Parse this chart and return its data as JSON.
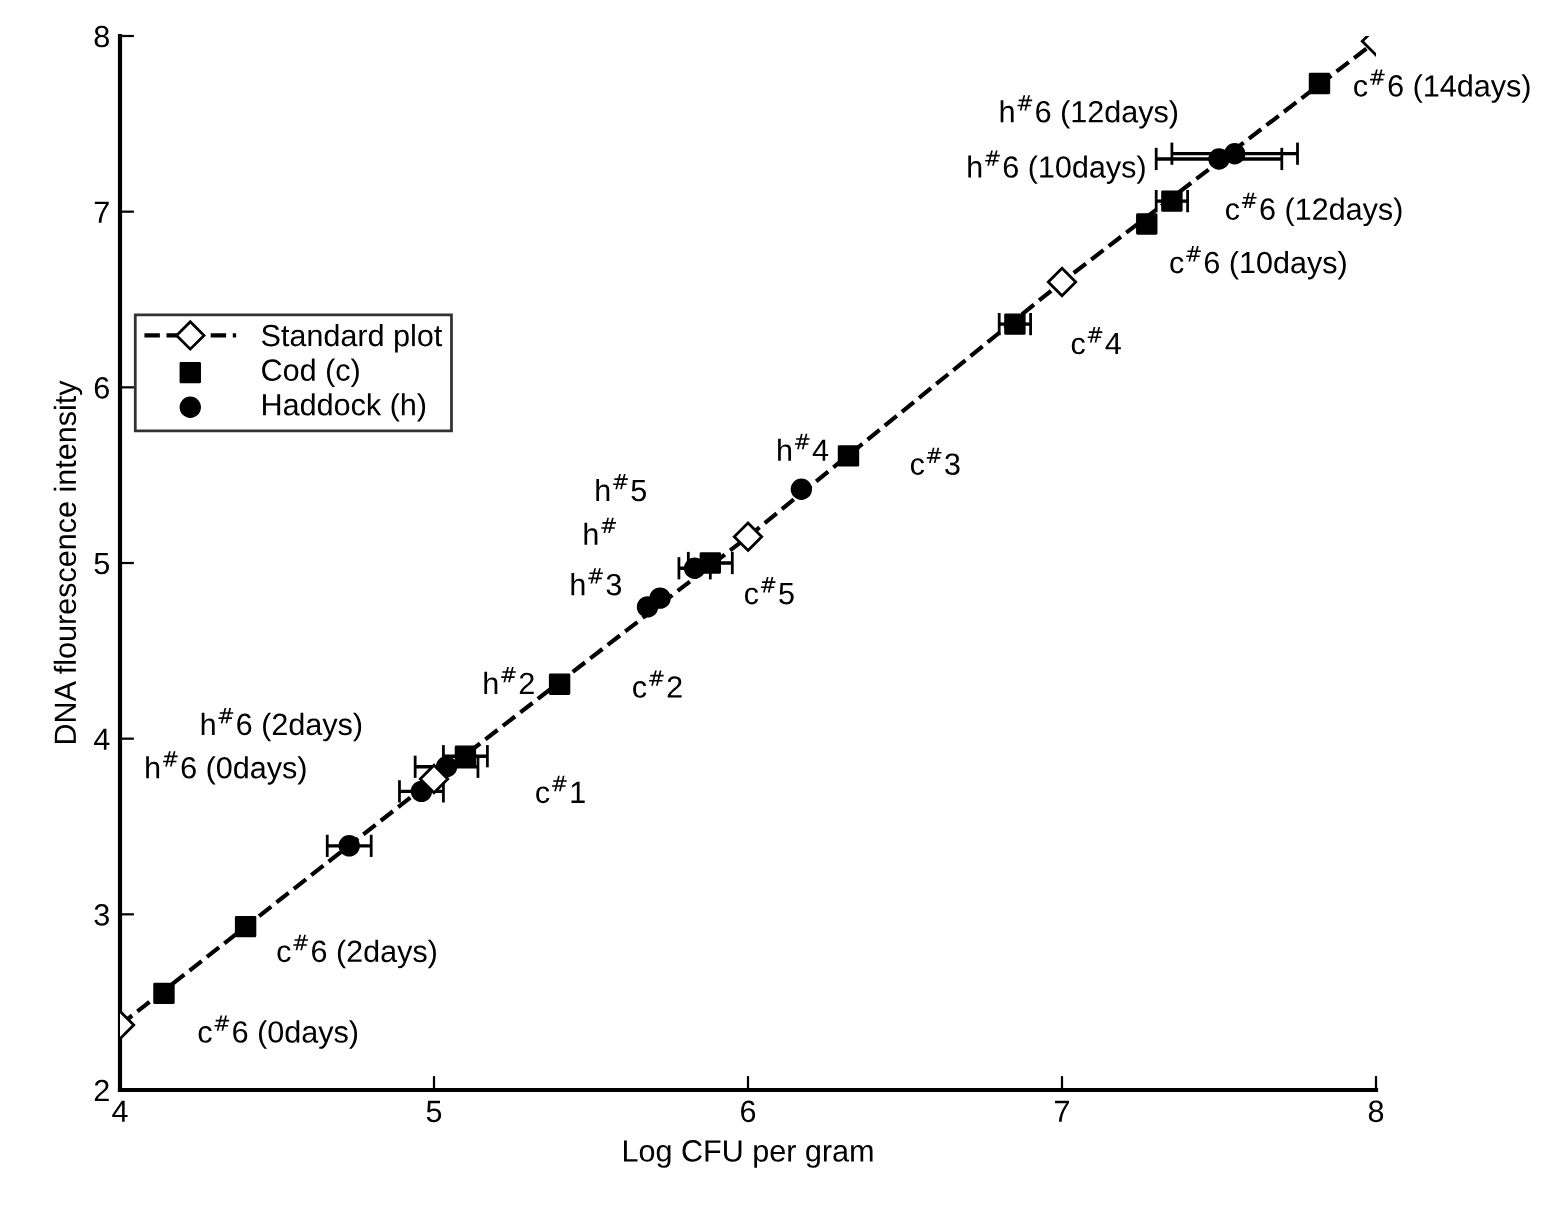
{
  "chart_data": {
    "type": "scatter",
    "xlabel": "Log CFU per gram",
    "ylabel": "DNA flourescence intensity",
    "xlim": [
      4,
      8
    ],
    "ylim": [
      2,
      8
    ],
    "xticks": [
      4,
      5,
      6,
      7,
      8
    ],
    "yticks": [
      2,
      3,
      4,
      5,
      6,
      7,
      8
    ],
    "grid": false,
    "legend": "top left",
    "series": [
      {
        "name": "Standard plot",
        "type": "line",
        "color": "#000000",
        "marker": "diamond",
        "line_style": "dashed",
        "x": [
          4,
          5,
          6,
          7,
          8
        ],
        "values": [
          2.37,
          3.77,
          5.15,
          6.6,
          7.97
        ]
      },
      {
        "name": "Cod (c)",
        "color": "#000000",
        "marker": "square",
        "x": [
          4.14,
          4.4,
          5.1,
          5.4,
          5.88,
          6.32,
          6.85,
          7.27,
          7.35,
          7.82
        ],
        "values": [
          2.55,
          2.93,
          3.9,
          4.31,
          5.0,
          5.61,
          6.36,
          6.93,
          7.06,
          7.73
        ],
        "xerrors": [
          null,
          null,
          0.07,
          null,
          0.07,
          null,
          0.05,
          null,
          0.05,
          null
        ]
      },
      {
        "name": "Haddock (h)",
        "color": "#000000",
        "marker": "circle",
        "x": [
          4.73,
          4.96,
          5.04,
          5.68,
          5.72,
          5.83,
          6.17,
          7.5,
          7.55
        ],
        "values": [
          3.39,
          3.7,
          3.84,
          4.75,
          4.8,
          4.97,
          5.42,
          7.3,
          7.33
        ],
        "xerrors": [
          0.07,
          0.07,
          0.1,
          null,
          null,
          0.05,
          null,
          0.2,
          0.2
        ]
      }
    ],
    "annotations": [
      {
        "text": "c$^{#}$6 (0days)",
        "x": 4.14,
        "y": 2.55
      },
      {
        "text": "c$^{#}$6 (2days)",
        "x": 4.4,
        "y": 2.93
      },
      {
        "text": "c$^{#}$1",
        "x": 5.1,
        "y": 3.9
      },
      {
        "text": "c$^{#}$2",
        "x": 5.4,
        "y": 4.31
      },
      {
        "text": "c$^{#}$5",
        "x": 5.88,
        "y": 5.0
      },
      {
        "text": "c$^{#}$3",
        "x": 6.32,
        "y": 5.61
      },
      {
        "text": "c$^{#}$4",
        "x": 6.85,
        "y": 6.36
      },
      {
        "text": "c$^{#}$6 (10days)",
        "x": 7.27,
        "y": 6.93
      },
      {
        "text": "c$^{#}$6 (12days)",
        "x": 7.35,
        "y": 7.06
      },
      {
        "text": "c$^{#}$6 (14days)",
        "x": 7.82,
        "y": 7.73
      },
      {
        "text": "h$^{#}$6 (0days)",
        "x": 4.73,
        "y": 3.39
      },
      {
        "text": "h$^{#}$6 (2days)",
        "x": 4.96,
        "y": 3.7
      },
      {
        "text": "h$^{#}$2",
        "x": 5.04,
        "y": 3.84
      },
      {
        "text": "h$^{#}$3",
        "x": 5.68,
        "y": 4.75
      },
      {
        "text": "h$^{#}$",
        "x": 5.72,
        "y": 4.8
      },
      {
        "text": "h$^{#}$5",
        "x": 5.83,
        "y": 4.97
      },
      {
        "text": "h$^{#}$4",
        "x": 6.17,
        "y": 5.42
      },
      {
        "text": "h$^{#}$6 (10days)",
        "x": 7.5,
        "y": 7.3
      },
      {
        "text": "h$^{#}$6 (12days)",
        "x": 7.55,
        "y": 7.33
      }
    ]
  }
}
